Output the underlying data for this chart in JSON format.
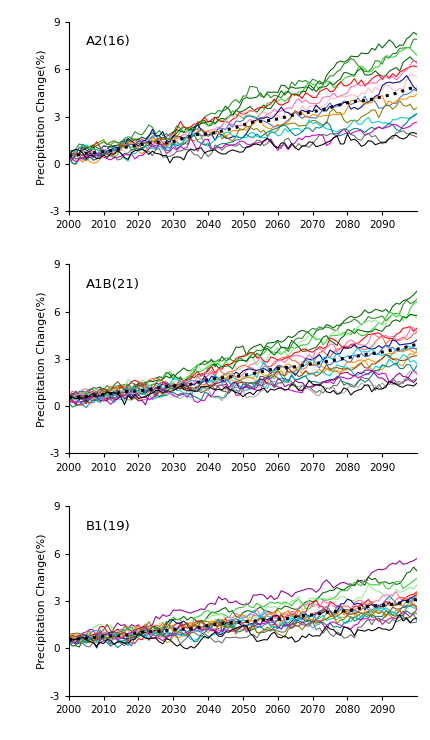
{
  "panels": [
    {
      "label": "A2(16)",
      "n_models": 16,
      "end_vals": [
        8.3,
        7.8,
        7.1,
        6.8,
        6.3,
        5.9,
        5.5,
        5.0,
        4.7,
        4.3,
        3.8,
        3.2,
        2.8,
        2.5,
        2.1,
        1.8
      ],
      "colors": [
        "#006400",
        "#228B22",
        "#32CD32",
        "#006400",
        "#FF0000",
        "#FF69B4",
        "#FFB6C1",
        "#00008B",
        "#4169E1",
        "#FF8C00",
        "#808000",
        "#00CED1",
        "#008080",
        "#CC00CC",
        "#696969",
        "#000000"
      ]
    },
    {
      "label": "A1B(21)",
      "n_models": 21,
      "end_vals": [
        7.0,
        6.5,
        6.2,
        5.9,
        5.6,
        5.2,
        4.9,
        4.6,
        4.3,
        4.0,
        3.7,
        3.5,
        3.2,
        3.0,
        2.8,
        2.5,
        2.2,
        2.0,
        1.8,
        1.5,
        1.2
      ],
      "colors": [
        "#006400",
        "#228B22",
        "#32CD32",
        "#90EE90",
        "#006400",
        "#FF0000",
        "#FF69B4",
        "#FF6347",
        "#00008B",
        "#4169E1",
        "#00BFFF",
        "#FF8C00",
        "#DAA520",
        "#8B4513",
        "#00CED1",
        "#008080",
        "#CC00CC",
        "#8B008B",
        "#696969",
        "#A9A9A9",
        "#000000"
      ]
    },
    {
      "label": "B1(19)",
      "n_models": 19,
      "end_vals": [
        5.5,
        5.0,
        4.5,
        4.0,
        3.5,
        3.3,
        3.2,
        3.1,
        3.0,
        2.9,
        2.8,
        2.7,
        2.6,
        2.4,
        2.2,
        2.0,
        1.9,
        1.7,
        1.5
      ],
      "colors": [
        "#8B008B",
        "#006400",
        "#32CD32",
        "#90EE90",
        "#FF0000",
        "#FF69B4",
        "#FF6347",
        "#00008B",
        "#4169E1",
        "#00BFFF",
        "#FF8C00",
        "#DAA520",
        "#8B4513",
        "#00CED1",
        "#008080",
        "#CC00CC",
        "#808000",
        "#696969",
        "#000000"
      ]
    }
  ],
  "ylim": [
    -3,
    9
  ],
  "yticks": [
    -3,
    0,
    3,
    6,
    9
  ],
  "xlim": [
    2000,
    2100
  ],
  "xticks": [
    2000,
    2010,
    2020,
    2030,
    2040,
    2050,
    2060,
    2070,
    2080,
    2090
  ],
  "ylabel": "Precipitation Change(%)"
}
